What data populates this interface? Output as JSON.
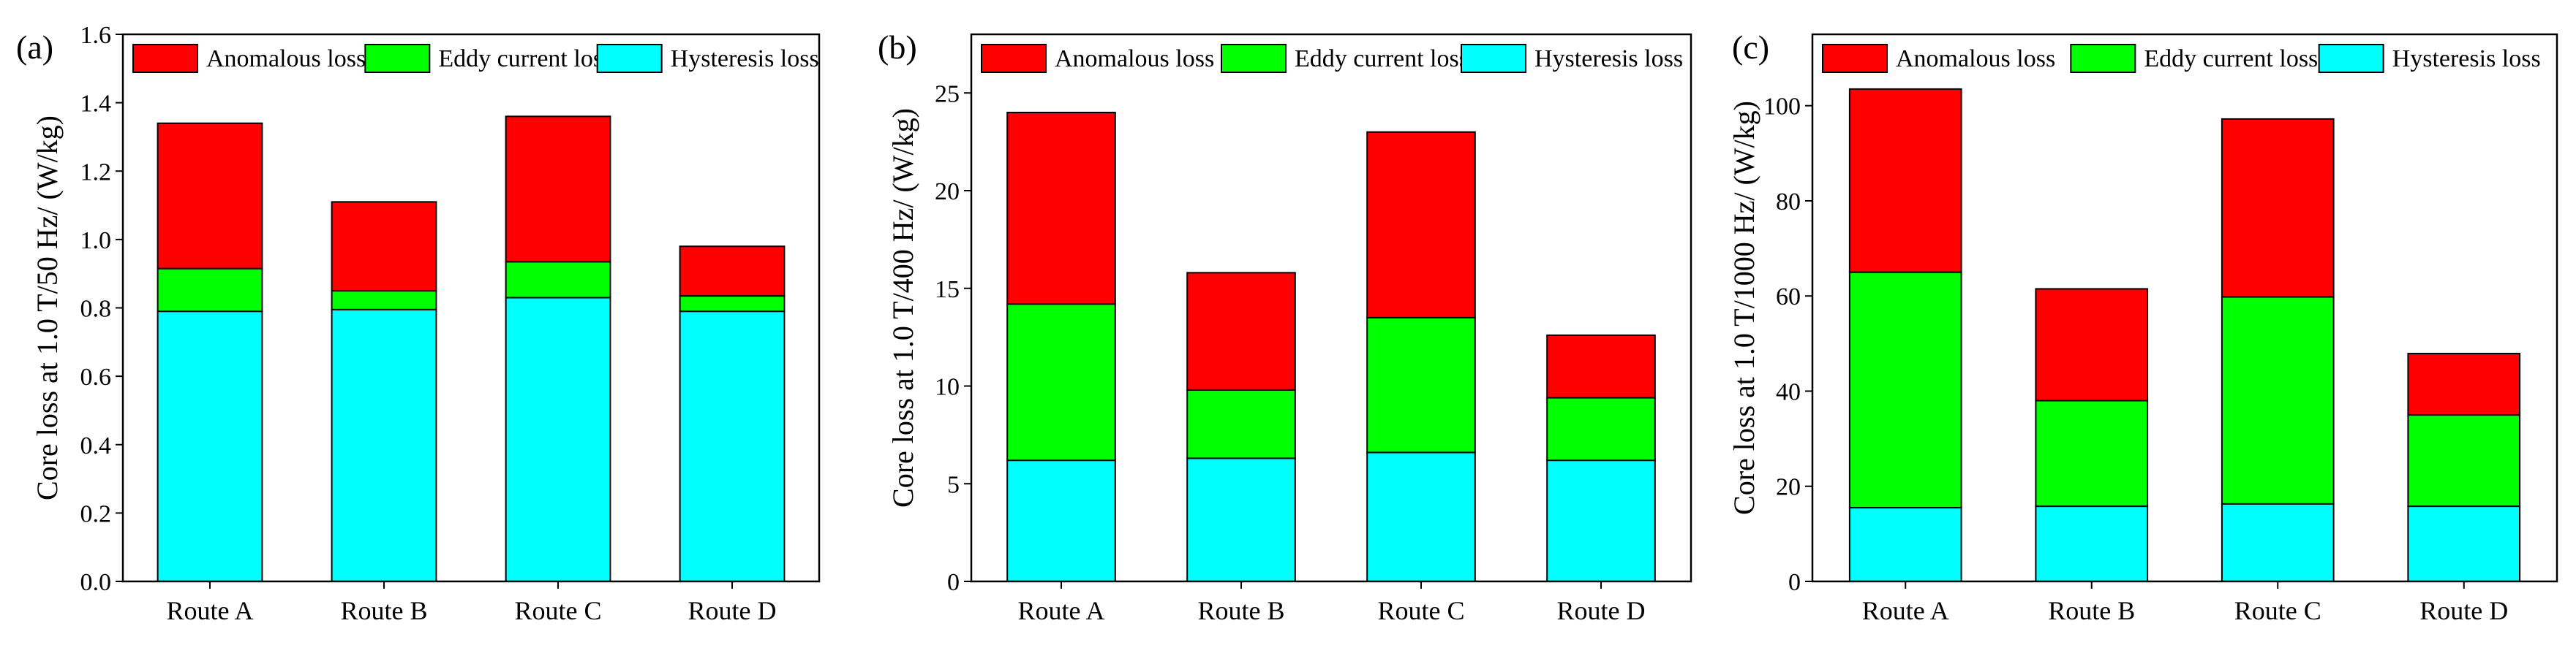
{
  "chart_data": [
    {
      "type": "bar",
      "stacked": true,
      "panel": "(a)",
      "categories": [
        "Route A",
        "Route B",
        "Route C",
        "Route D"
      ],
      "ylabel": "Core loss at 1.0 T/50 Hz/ (W/kg)",
      "ylim": [
        0,
        1.6
      ],
      "yticks": [
        "0.0",
        "0.2",
        "0.4",
        "0.6",
        "0.8",
        "1.0",
        "1.2",
        "1.4",
        "1.6"
      ],
      "legend_position": "top",
      "series": [
        {
          "name": "Hysteresis loss",
          "color": "#00FFFF",
          "values": [
            0.79,
            0.795,
            0.83,
            0.79
          ]
        },
        {
          "name": "Eddy current loss",
          "color": "#00FF00",
          "values": [
            0.125,
            0.055,
            0.105,
            0.045
          ]
        },
        {
          "name": "Anomalous loss",
          "color": "#FF0000",
          "values": [
            0.425,
            0.26,
            0.425,
            0.145
          ]
        }
      ],
      "legend_order": [
        "Anomalous loss",
        "Eddy current loss",
        "Hysteresis loss"
      ]
    },
    {
      "type": "bar",
      "stacked": true,
      "panel": "(b)",
      "categories": [
        "Route A",
        "Route B",
        "Route C",
        "Route D"
      ],
      "ylabel": "Core loss at 1.0 T/400 Hz/ (W/kg)",
      "ylim": [
        0,
        28
      ],
      "yticks": [
        "0",
        "5",
        "10",
        "15",
        "20",
        "25"
      ],
      "legend_position": "top",
      "series": [
        {
          "name": "Hysteresis loss",
          "color": "#00FFFF",
          "values": [
            6.2,
            6.3,
            6.6,
            6.2
          ]
        },
        {
          "name": "Eddy current loss",
          "color": "#00FF00",
          "values": [
            8.0,
            3.5,
            6.9,
            3.2
          ]
        },
        {
          "name": "Anomalous loss",
          "color": "#FF0000",
          "values": [
            9.8,
            6.0,
            9.5,
            3.2
          ]
        }
      ],
      "legend_order": [
        "Anomalous loss",
        "Eddy current loss",
        "Hysteresis loss"
      ]
    },
    {
      "type": "bar",
      "stacked": true,
      "panel": "(c)",
      "categories": [
        "Route A",
        "Route B",
        "Route C",
        "Route D"
      ],
      "ylabel": "Core loss at 1.0 T/1000 Hz/ (W/kg)",
      "ylim": [
        0,
        115
      ],
      "yticks": [
        "0",
        "20",
        "40",
        "60",
        "80",
        "100"
      ],
      "legend_position": "top",
      "series": [
        {
          "name": "Hysteresis loss",
          "color": "#00FFFF",
          "values": [
            15.5,
            15.8,
            16.3,
            15.8
          ]
        },
        {
          "name": "Eddy current loss",
          "color": "#00FF00",
          "values": [
            49.5,
            22.2,
            43.5,
            19.2
          ]
        },
        {
          "name": "Anomalous loss",
          "color": "#FF0000",
          "values": [
            38.5,
            23.5,
            37.4,
            12.9
          ]
        }
      ],
      "legend_order": [
        "Anomalous loss",
        "Eddy current loss",
        "Hysteresis loss"
      ]
    }
  ]
}
